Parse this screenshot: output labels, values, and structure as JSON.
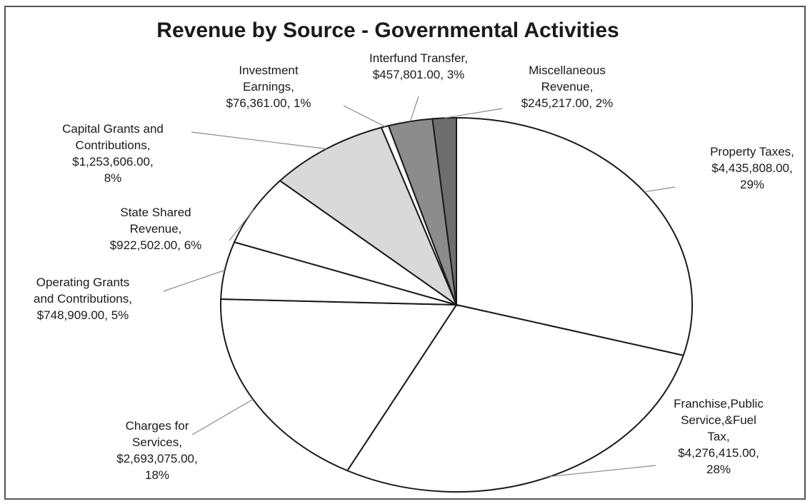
{
  "chart_data": {
    "type": "pie",
    "title": "Revenue by Source - Governmental Activities",
    "slices": [
      {
        "label": [
          "Property Taxes,",
          "$4,435,808.00,",
          "29%"
        ],
        "value": 4435808,
        "percent": 29,
        "color": "#ffffff"
      },
      {
        "label": [
          "Franchise,Public",
          "Service,&Fuel",
          "Tax,",
          "$4,276,415.00,",
          "28%"
        ],
        "value": 4276415,
        "percent": 28,
        "color": "#ffffff"
      },
      {
        "label": [
          "Charges for",
          "Services,",
          "$2,693,075.00,",
          "18%"
        ],
        "value": 2693075,
        "percent": 18,
        "color": "#ffffff"
      },
      {
        "label": [
          "Operating Grants",
          "and Contributions,",
          "$748,909.00, 5%"
        ],
        "value": 748909,
        "percent": 5,
        "color": "#ffffff"
      },
      {
        "label": [
          "State Shared",
          "Revenue,",
          "$922,502.00, 6%"
        ],
        "value": 922502,
        "percent": 6,
        "color": "#ffffff"
      },
      {
        "label": [
          "Capital Grants and",
          "Contributions,",
          "$1,253,606.00,",
          "8%"
        ],
        "value": 1253606,
        "percent": 8,
        "color": "#d9d9d9"
      },
      {
        "label": [
          "Investment",
          "Earnings,",
          "$76,361.00, 1%"
        ],
        "value": 76361,
        "percent": 1,
        "color": "#ffffff"
      },
      {
        "label": [
          "Interfund Transfer,",
          "$457,801.00, 3%"
        ],
        "value": 457801,
        "percent": 3,
        "color": "#8c8c8c"
      },
      {
        "label": [
          "Miscellaneous",
          "Revenue,",
          "$245,217.00, 2%"
        ],
        "value": 245217,
        "percent": 2,
        "color": "#6e6e6e"
      }
    ]
  }
}
